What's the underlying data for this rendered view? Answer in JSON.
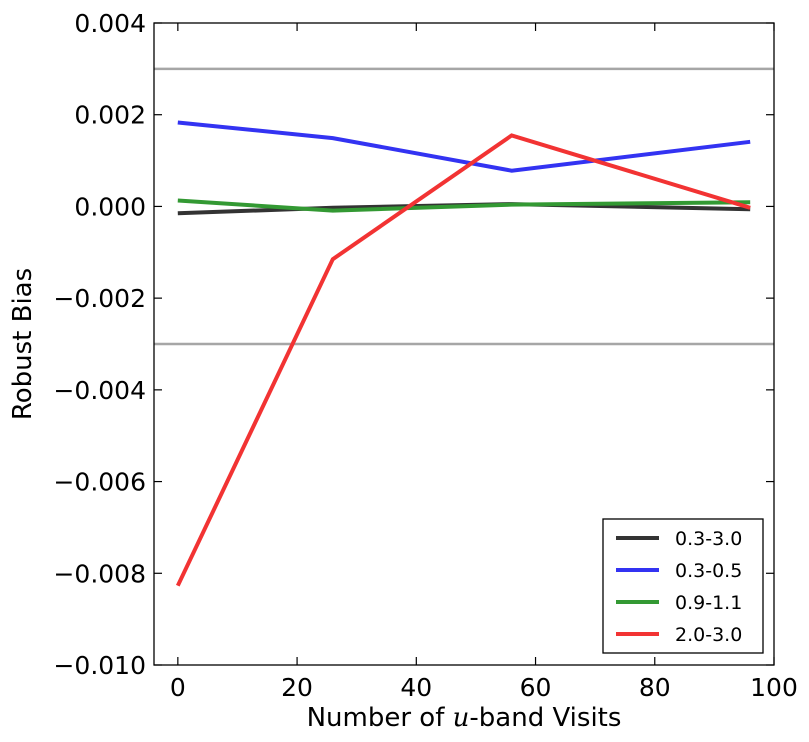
{
  "chart_data": {
    "type": "line",
    "xlabel": "Number of u-band Visits",
    "xlabel_parts": [
      "Number of ",
      "u",
      "-band Visits"
    ],
    "ylabel": "Robust Bias",
    "xlim": [
      -4,
      100
    ],
    "ylim": [
      -0.01,
      0.004
    ],
    "xticks": [
      0,
      20,
      40,
      60,
      80,
      100
    ],
    "xtick_labels": [
      "0",
      "20",
      "40",
      "60",
      "80",
      "100"
    ],
    "yticks": [
      -0.01,
      -0.008,
      -0.006,
      -0.004,
      -0.002,
      0.0,
      0.002,
      0.004
    ],
    "ytick_labels": [
      "−0.010",
      "−0.008",
      "−0.006",
      "−0.004",
      "−0.002",
      "0.000",
      "0.002",
      "0.004"
    ],
    "grid": false,
    "legend_position": "lower-right",
    "reference_lines": [
      {
        "y": 0.003,
        "color": "#a6a6a6"
      },
      {
        "y": -0.003,
        "color": "#a6a6a6"
      }
    ],
    "x": [
      0,
      26,
      56,
      96
    ],
    "series": [
      {
        "name": "0.3-3.0",
        "color": "#333333",
        "values": [
          -0.00015,
          -3e-05,
          5e-05,
          -6e-05
        ]
      },
      {
        "name": "0.3-0.5",
        "color": "#3333f2",
        "values": [
          0.00183,
          0.00149,
          0.00078,
          0.00141
        ]
      },
      {
        "name": "0.9-1.1",
        "color": "#339933",
        "values": [
          0.00013,
          -9e-05,
          4e-05,
          9e-05
        ]
      },
      {
        "name": "2.0-3.0",
        "color": "#f23333",
        "values": [
          -0.00827,
          -0.00115,
          0.00155,
          -3e-05
        ]
      }
    ]
  }
}
